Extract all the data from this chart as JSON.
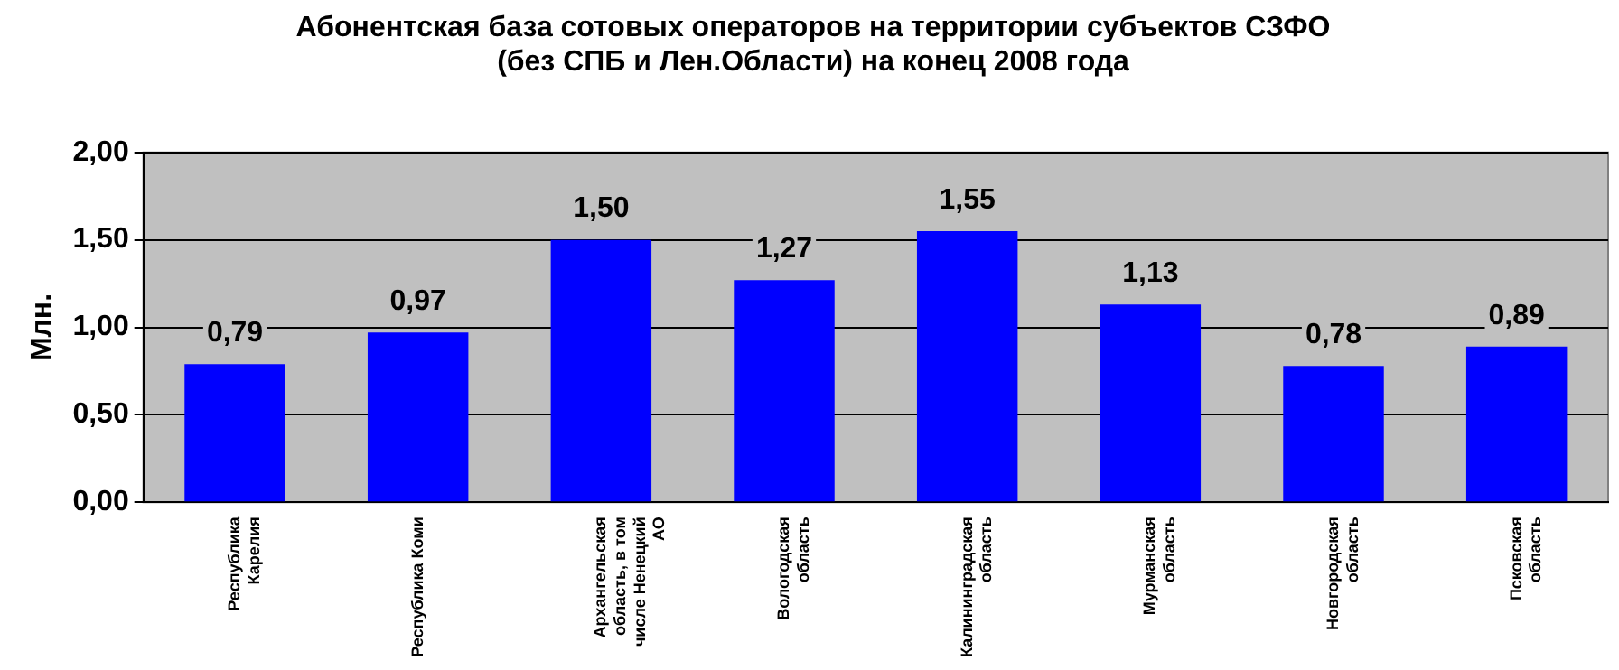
{
  "chart_data": {
    "type": "bar",
    "title": "Абонентская база сотовых операторов на территории субъектов СЗФО\n(без СПБ и Лен.Области) на конец 2008 года",
    "ylabel": "Млн.",
    "categories": [
      "Республика Карелия",
      "Республика Коми",
      "Архангельская область, в том числе Ненецкий АО",
      "Вологодская область",
      "Калининградская область",
      "Мурманская область",
      "Новгородская область",
      "Псковская область"
    ],
    "values": [
      0.79,
      0.97,
      1.5,
      1.27,
      1.55,
      1.13,
      0.78,
      0.89
    ],
    "value_labels": [
      "0,79",
      "0,97",
      "1,50",
      "1,27",
      "1,55",
      "1,13",
      "0,78",
      "0,89"
    ],
    "color": "#0000ff",
    "ylim": [
      0,
      2
    ],
    "yticks": [
      {
        "value": 0,
        "label": "0,00"
      },
      {
        "value": 0.5,
        "label": "0,50"
      },
      {
        "value": 1,
        "label": "1,00"
      },
      {
        "value": 1.5,
        "label": "1,50"
      },
      {
        "value": 2,
        "label": "2,00"
      }
    ],
    "grid": "y",
    "legend": false
  }
}
